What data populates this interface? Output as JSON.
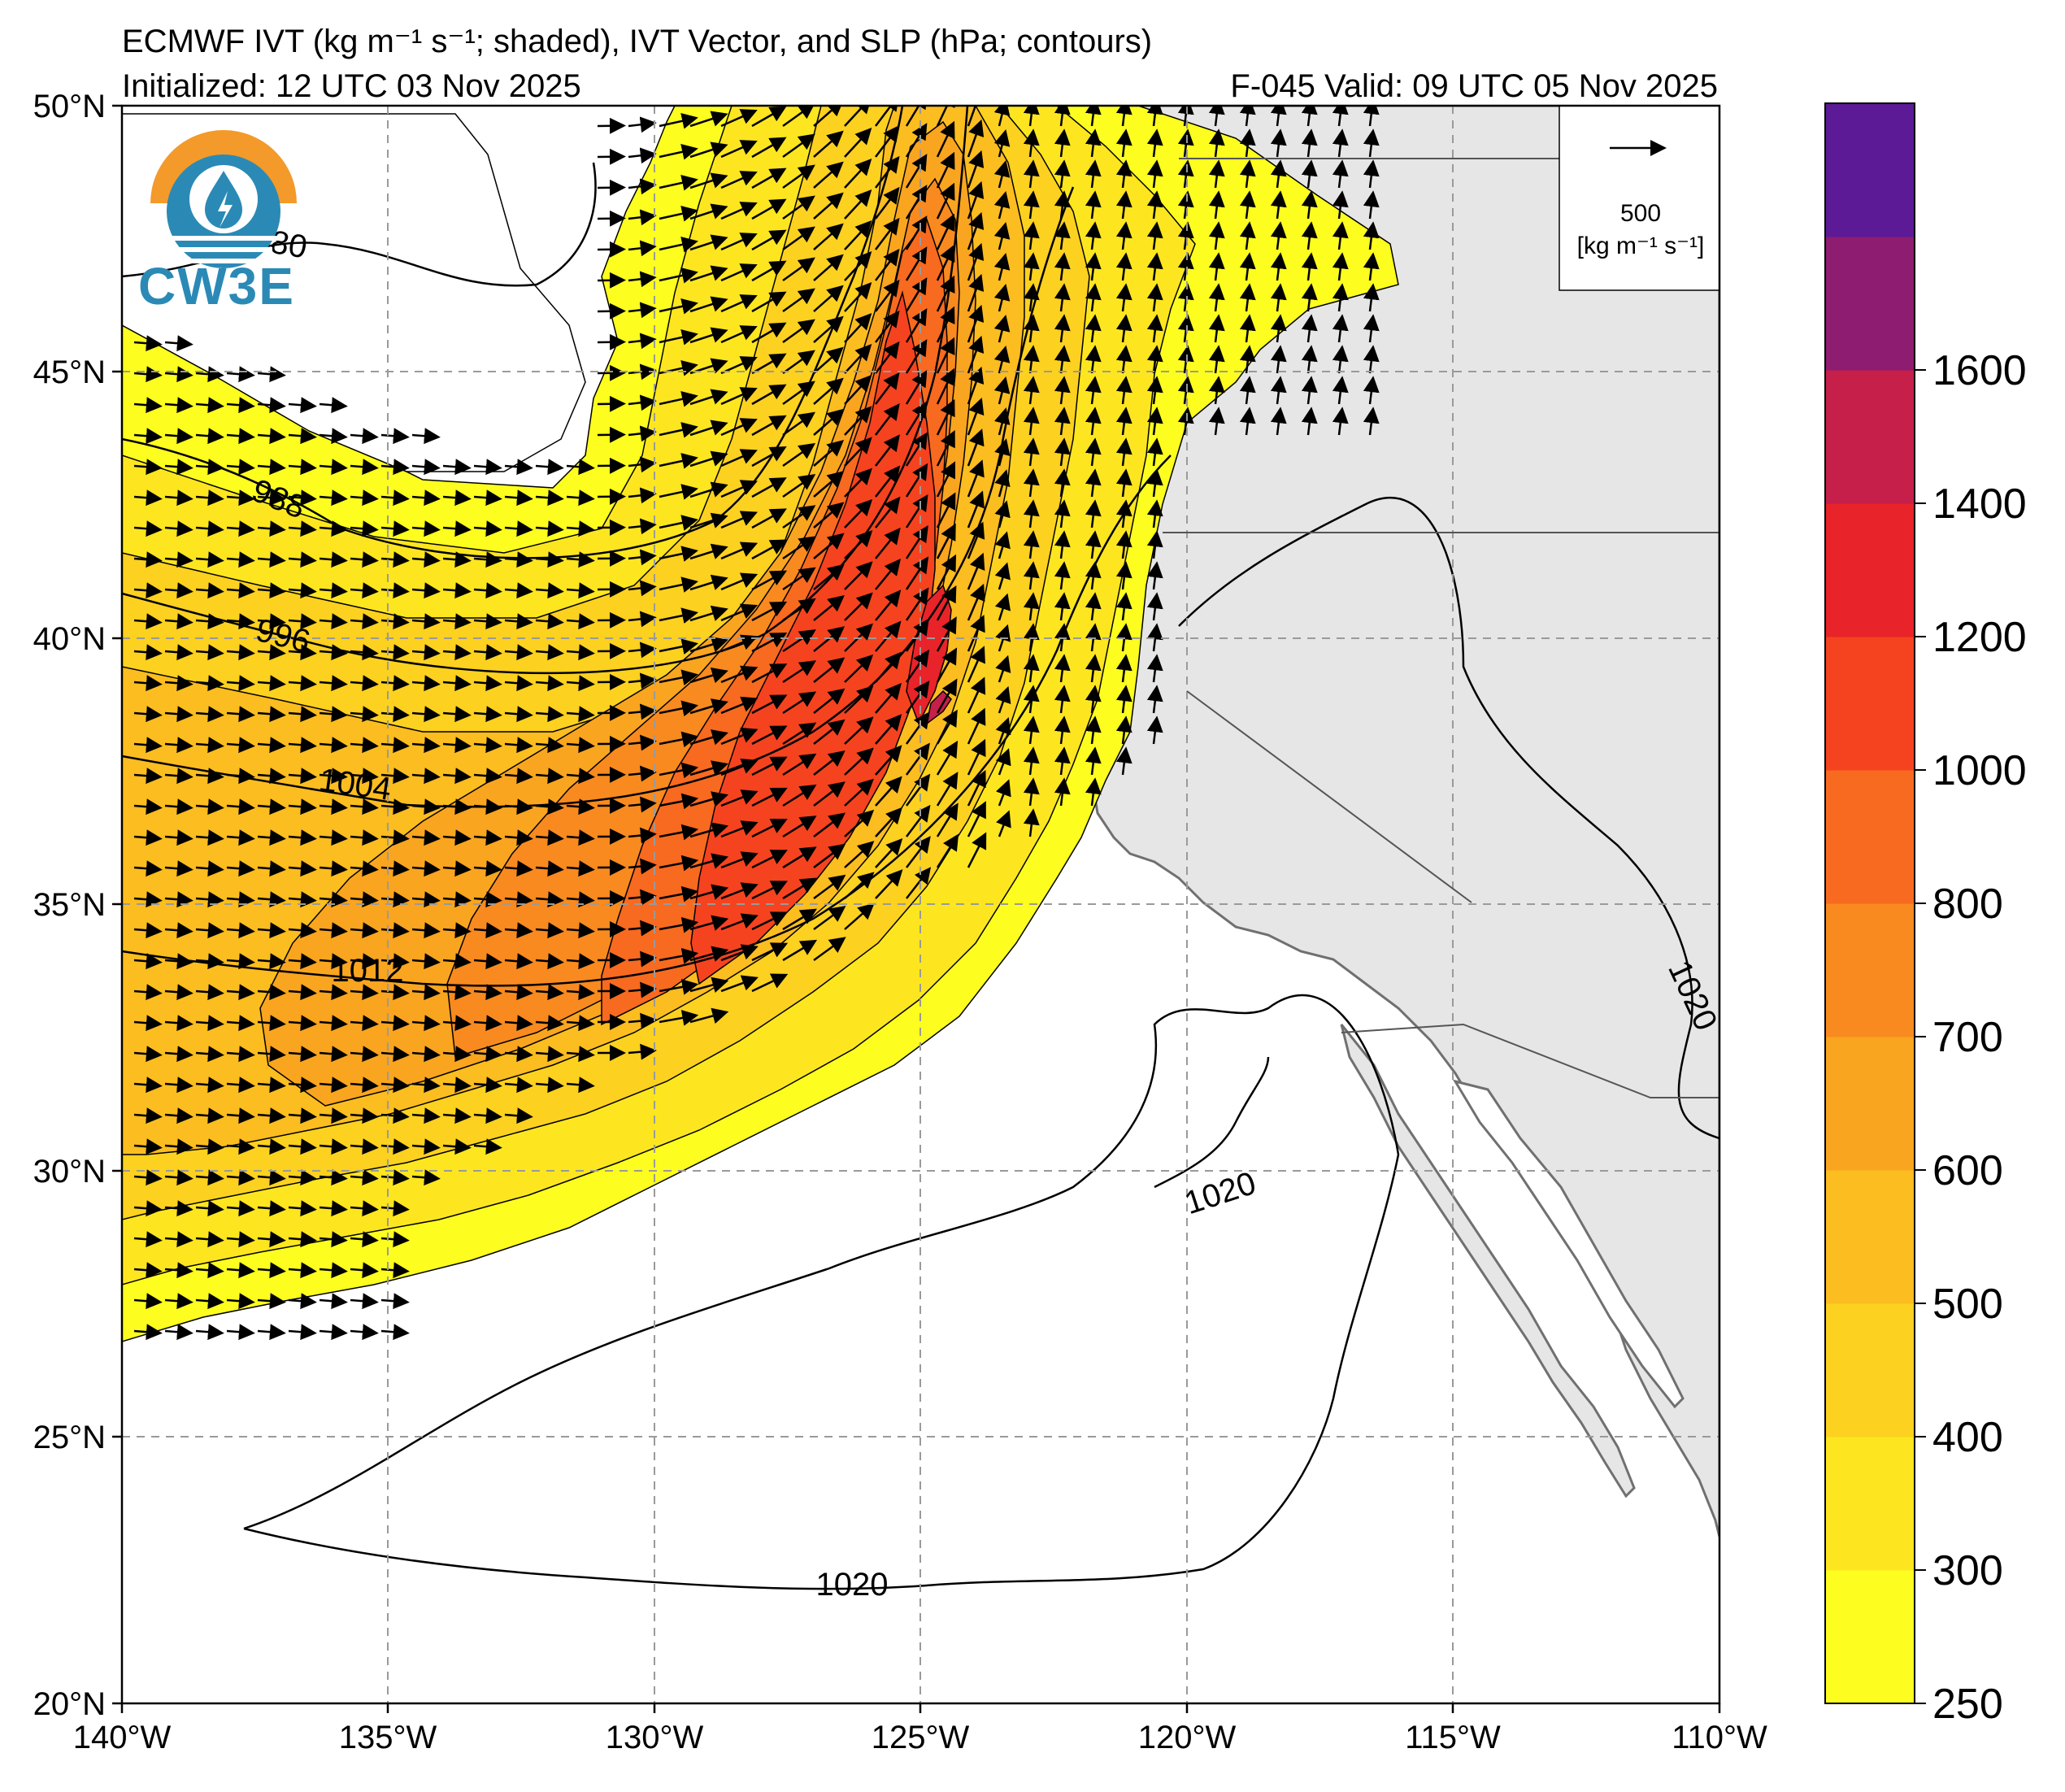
{
  "header": {
    "title": "ECMWF IVT (kg m⁻¹ s⁻¹; shaded), IVT Vector, and SLP (hPa; contours)",
    "initialized": "Initialized: 12 UTC 03 Nov 2025",
    "valid": "F-045  Valid: 09 UTC 05 Nov 2025"
  },
  "logo": {
    "text": "CW3E",
    "icon": "water-drop-logo-icon"
  },
  "map": {
    "lat_ticks": [
      "50°N",
      "45°N",
      "40°N",
      "35°N",
      "30°N",
      "25°N",
      "20°N"
    ],
    "lon_ticks": [
      "140°W",
      "135°W",
      "130°W",
      "125°W",
      "120°W",
      "115°W",
      "110°W"
    ],
    "lat_range": [
      20,
      50
    ],
    "lon_range": [
      -140,
      -110
    ],
    "slp_contour_labels": [
      "980",
      "988",
      "996",
      "1004",
      "1012",
      "1020",
      "1020",
      "1020"
    ]
  },
  "vector_key": {
    "value": "500",
    "units": "[kg m⁻¹ s⁻¹]"
  },
  "colorbar": {
    "ticks": [
      "1600",
      "1400",
      "1200",
      "1000",
      "800",
      "700",
      "600",
      "500",
      "400",
      "300",
      "250"
    ],
    "levels": [
      250,
      300,
      400,
      500,
      600,
      700,
      800,
      1000,
      1200,
      1400,
      1600
    ],
    "colors": [
      "#fdfd1f",
      "#fde61f",
      "#fcd11f",
      "#fbbd1f",
      "#f9a51f",
      "#f88a1f",
      "#f76a1f",
      "#f5431f",
      "#e8232a",
      "#c51f4a",
      "#8e1c70",
      "#5c1a96"
    ]
  },
  "colors": {
    "land": "#e6e6e6",
    "ocean": "#ffffff",
    "coast": "#707070",
    "grid": "#9a9a9a"
  }
}
